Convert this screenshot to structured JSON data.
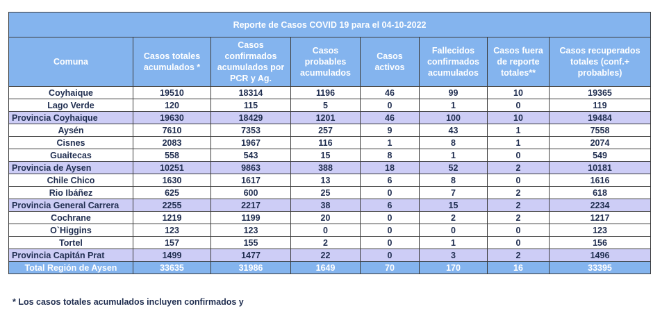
{
  "title": "Reporte de Casos COVID 19  para el 04-10-2022",
  "headers": [
    "Comuna",
    "Casos totales acumulados *",
    "Casos confirmados acumulados por PCR y Ag.",
    "Casos probables acumulados",
    "Casos activos",
    "Fallecidos confirmados acumulados",
    "Casos fuera de reporte totales**",
    "Casos recuperados totales (conf.+ probables)"
  ],
  "rows": [
    {
      "type": "commune",
      "cells": [
        "Coyhaique",
        "19510",
        "18314",
        "1196",
        "46",
        "99",
        "10",
        "19365"
      ]
    },
    {
      "type": "commune",
      "cells": [
        "Lago Verde",
        "120",
        "115",
        "5",
        "0",
        "1",
        "0",
        "119"
      ]
    },
    {
      "type": "province",
      "cells": [
        "Provincia Coyhaique",
        "19630",
        "18429",
        "1201",
        "46",
        "100",
        "10",
        "19484"
      ]
    },
    {
      "type": "commune",
      "cells": [
        "Aysén",
        "7610",
        "7353",
        "257",
        "9",
        "43",
        "1",
        "7558"
      ]
    },
    {
      "type": "commune",
      "cells": [
        "Cisnes",
        "2083",
        "1967",
        "116",
        "1",
        "8",
        "1",
        "2074"
      ]
    },
    {
      "type": "commune",
      "cells": [
        "Guaitecas",
        "558",
        "543",
        "15",
        "8",
        "1",
        "0",
        "549"
      ]
    },
    {
      "type": "province",
      "cells": [
        "Provincia de Aysen",
        "10251",
        "9863",
        "388",
        "18",
        "52",
        "2",
        "10181"
      ]
    },
    {
      "type": "commune",
      "cells": [
        "Chile Chico",
        "1630",
        "1617",
        "13",
        "6",
        "8",
        "0",
        "1616"
      ]
    },
    {
      "type": "commune",
      "cells": [
        "Rio Ibáñez",
        "625",
        "600",
        "25",
        "0",
        "7",
        "2",
        "618"
      ]
    },
    {
      "type": "province",
      "cells": [
        "Provincia General Carrera",
        "2255",
        "2217",
        "38",
        "6",
        "15",
        "2",
        "2234"
      ]
    },
    {
      "type": "commune",
      "cells": [
        "Cochrane",
        "1219",
        "1199",
        "20",
        "0",
        "2",
        "2",
        "1217"
      ]
    },
    {
      "type": "commune",
      "cells": [
        "O`Higgins",
        "123",
        "123",
        "0",
        "0",
        "0",
        "0",
        "123"
      ]
    },
    {
      "type": "commune",
      "cells": [
        "Tortel",
        "157",
        "155",
        "2",
        "0",
        "1",
        "0",
        "156"
      ]
    },
    {
      "type": "province",
      "cells": [
        "Provincia Capitán Prat",
        "1499",
        "1477",
        "22",
        "0",
        "3",
        "2",
        "1496"
      ]
    },
    {
      "type": "total",
      "cells": [
        "Total Región de Aysen",
        "33635",
        "31986",
        "1649",
        "70",
        "170",
        "16",
        "33395"
      ]
    }
  ],
  "footnote": "* Los casos totales acumulados incluyen confirmados y"
}
